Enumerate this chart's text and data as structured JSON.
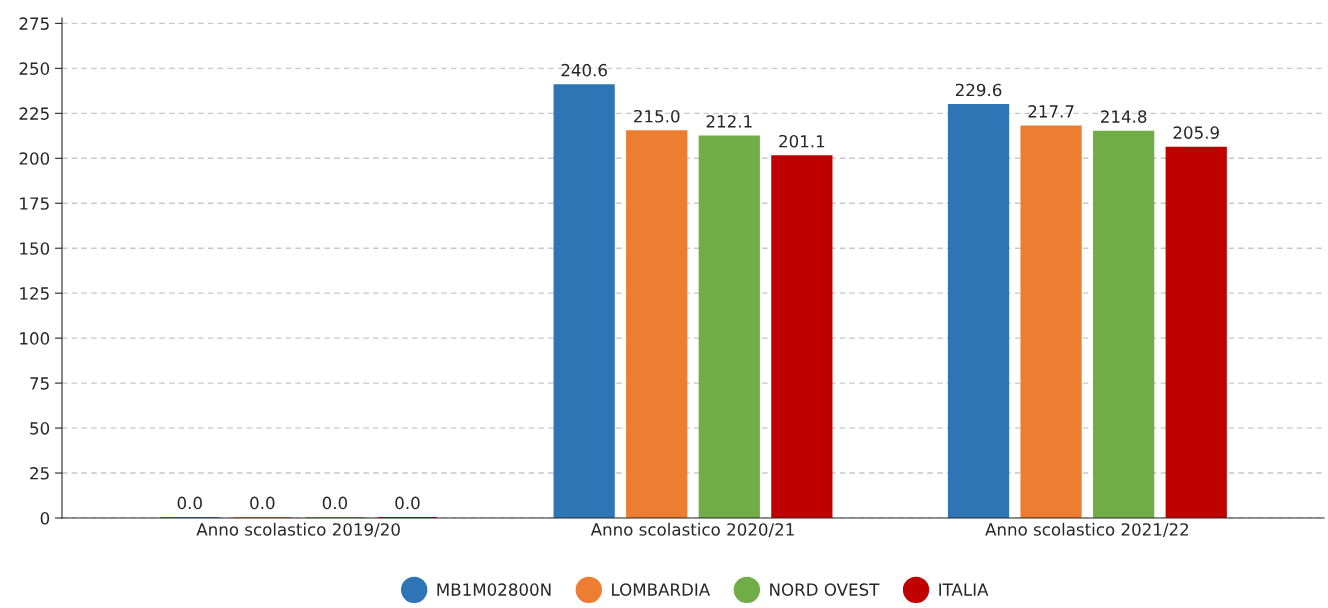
{
  "chart_data": {
    "type": "bar",
    "categories": [
      "Anno scolastico 2019/20",
      "Anno scolastico 2020/21",
      "Anno scolastico 2021/22"
    ],
    "series": [
      {
        "name": "MB1M02800N",
        "color": "#2e75b6",
        "values": [
          0,
          240.6,
          229.6
        ],
        "value_labels": [
          "0.0",
          "240.6",
          "229.6"
        ]
      },
      {
        "name": "LOMBARDIA",
        "color": "#ed7d31",
        "values": [
          0,
          215,
          217.7
        ],
        "value_labels": [
          "0.0",
          "215.0",
          "217.7"
        ]
      },
      {
        "name": "NORD OVEST",
        "color": "#70ad47",
        "values": [
          0,
          212.1,
          214.8
        ],
        "value_labels": [
          "0.0",
          "212.1",
          "214.8"
        ]
      },
      {
        "name": "ITALIA",
        "color": "#c00000",
        "values": [
          0,
          201.1,
          205.9
        ],
        "value_labels": [
          "0.0",
          "201.1",
          "205.9"
        ]
      }
    ],
    "ylim": [
      0,
      278
    ],
    "yticks": [
      0,
      25,
      50,
      75,
      100,
      125,
      150,
      175,
      200,
      225,
      250,
      275
    ],
    "grid": "y",
    "legend": "bottom"
  }
}
